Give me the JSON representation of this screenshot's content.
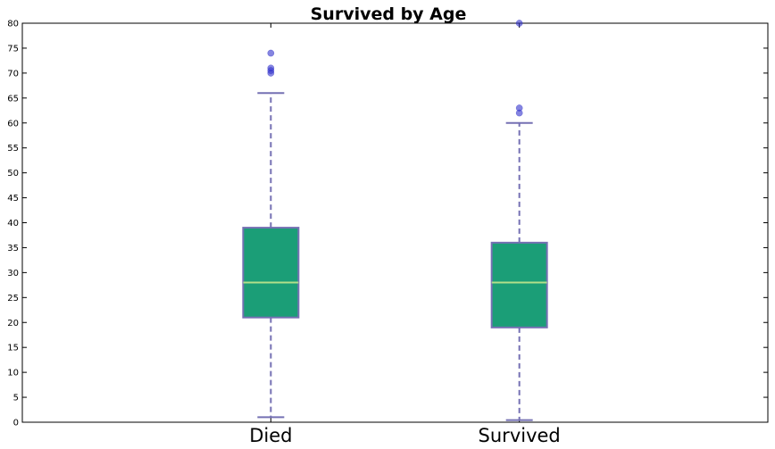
{
  "chart_data": {
    "type": "box",
    "title": "Survived by Age",
    "xlabel": "",
    "ylabel": "",
    "ylim": [
      0,
      80
    ],
    "yticks": [
      0,
      5,
      10,
      15,
      20,
      25,
      30,
      35,
      40,
      45,
      50,
      55,
      60,
      65,
      70,
      75,
      80
    ],
    "categories": [
      "Died",
      "Survived"
    ],
    "boxes": [
      {
        "category": "Died",
        "whisker_low": 1,
        "q1": 21,
        "median": 28,
        "q3": 39,
        "whisker_high": 66,
        "outliers": [
          70,
          70.5,
          71,
          74
        ]
      },
      {
        "category": "Survived",
        "whisker_low": 0.42,
        "q1": 19,
        "median": 28,
        "q3": 36,
        "whisker_high": 60,
        "outliers": [
          62,
          63,
          80
        ]
      }
    ],
    "colors": {
      "box_fill": "#1b9e77",
      "box_edge": "#7570b3",
      "median": "#b2df8a",
      "whisker": "#7570b3",
      "outlier": "#3333cc"
    }
  }
}
